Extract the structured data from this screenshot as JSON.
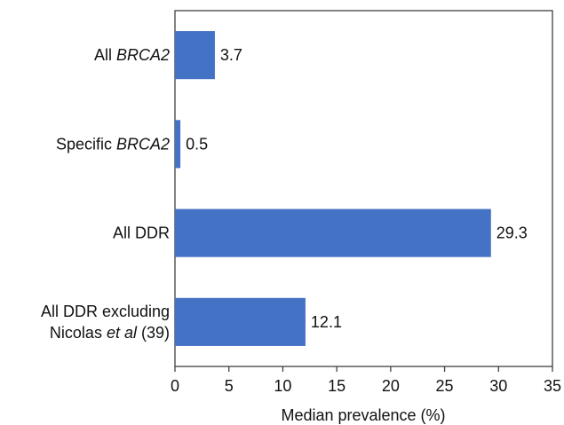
{
  "chart_data": {
    "type": "bar",
    "orientation": "horizontal",
    "categories": [
      {
        "lines": [
          [
            {
              "text": "All ",
              "italic": false
            },
            {
              "text": "BRCA2",
              "italic": true
            }
          ]
        ]
      },
      {
        "lines": [
          [
            {
              "text": "Specific ",
              "italic": false
            },
            {
              "text": "BRCA2",
              "italic": true
            }
          ]
        ]
      },
      {
        "lines": [
          [
            {
              "text": "All DDR",
              "italic": false
            }
          ]
        ]
      },
      {
        "lines": [
          [
            {
              "text": "All DDR excluding",
              "italic": false
            }
          ],
          [
            {
              "text": "Nicolas ",
              "italic": false
            },
            {
              "text": "et al",
              "italic": true
            },
            {
              "text": " (39)",
              "italic": false
            }
          ]
        ]
      }
    ],
    "values": [
      3.7,
      0.5,
      29.3,
      12.1
    ],
    "data_labels": [
      "3.7",
      "0.5",
      "29.3",
      "12.1"
    ],
    "xlabel": "Median prevalence (%)",
    "xlim": [
      0,
      35
    ],
    "xticks": [
      0,
      5,
      10,
      15,
      20,
      25,
      30,
      35
    ],
    "grid": false,
    "legend": "none",
    "bar_color": "#4472C4",
    "axis_color": "#404040"
  }
}
